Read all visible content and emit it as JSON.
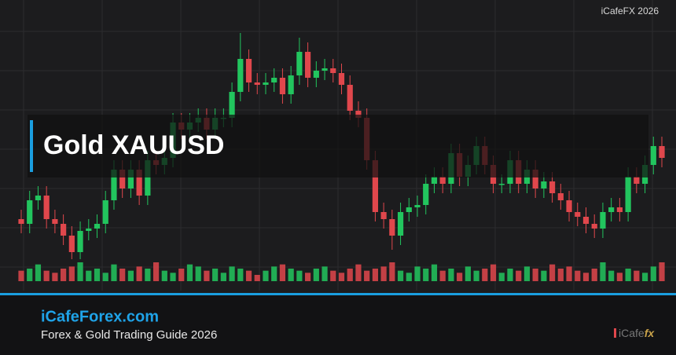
{
  "chart_data": {
    "type": "candlestick",
    "ylim": [
      0,
      100
    ],
    "up_color": "#22c55e",
    "down_color": "#e0474c",
    "open": [
      17,
      15,
      25,
      27,
      17,
      15,
      10,
      3,
      12,
      13,
      15,
      25,
      38,
      30,
      38,
      27,
      42,
      40,
      43,
      58,
      55,
      58,
      60,
      55,
      60,
      60,
      71,
      85,
      75,
      74,
      75,
      77,
      70,
      78,
      88,
      77,
      80,
      81,
      79,
      74,
      63,
      60,
      42,
      20,
      17,
      10,
      20,
      22,
      23,
      32,
      35,
      32,
      45,
      35,
      40,
      48,
      40,
      32,
      32,
      42,
      32,
      38,
      30,
      33,
      28,
      25,
      20,
      18,
      15,
      13,
      20,
      22,
      20,
      35,
      32,
      40,
      48
    ],
    "high": [
      21,
      29,
      31,
      31,
      21,
      19,
      14,
      16,
      17,
      19,
      29,
      42,
      42,
      42,
      42,
      46,
      46,
      47,
      62,
      62,
      62,
      64,
      64,
      64,
      64,
      75,
      96,
      89,
      79,
      79,
      81,
      81,
      82,
      94,
      92,
      84,
      85,
      85,
      83,
      78,
      67,
      64,
      46,
      24,
      21,
      24,
      26,
      27,
      36,
      39,
      39,
      49,
      49,
      44,
      52,
      52,
      44,
      36,
      46,
      46,
      42,
      42,
      37,
      37,
      32,
      29,
      24,
      22,
      19,
      24,
      26,
      26,
      39,
      39,
      44,
      52,
      52
    ],
    "low": [
      11,
      11,
      21,
      13,
      11,
      6,
      0,
      0,
      8,
      9,
      11,
      21,
      26,
      26,
      23,
      23,
      36,
      36,
      39,
      51,
      51,
      54,
      51,
      51,
      56,
      56,
      67,
      71,
      70,
      70,
      71,
      66,
      66,
      74,
      73,
      73,
      76,
      75,
      70,
      59,
      56,
      38,
      16,
      13,
      4,
      6,
      16,
      18,
      19,
      28,
      28,
      28,
      31,
      31,
      36,
      36,
      28,
      28,
      28,
      28,
      28,
      26,
      26,
      24,
      21,
      16,
      14,
      11,
      9,
      9,
      16,
      16,
      16,
      28,
      28,
      36,
      39
    ],
    "close": [
      15,
      25,
      27,
      17,
      15,
      10,
      3,
      12,
      13,
      15,
      25,
      38,
      30,
      38,
      27,
      42,
      40,
      43,
      58,
      55,
      58,
      60,
      55,
      60,
      60,
      71,
      85,
      75,
      74,
      75,
      77,
      70,
      78,
      88,
      77,
      80,
      81,
      79,
      74,
      63,
      60,
      42,
      20,
      17,
      10,
      20,
      22,
      23,
      32,
      35,
      32,
      45,
      35,
      40,
      48,
      40,
      32,
      32,
      42,
      32,
      38,
      30,
      33,
      28,
      25,
      20,
      18,
      15,
      13,
      20,
      22,
      20,
      35,
      32,
      40,
      48,
      43
    ],
    "volume": [
      5,
      6,
      8,
      5,
      4,
      6,
      7,
      9,
      5,
      6,
      4,
      8,
      6,
      5,
      7,
      6,
      9,
      5,
      4,
      6,
      8,
      7,
      5,
      6,
      4,
      7,
      6,
      5,
      3,
      5,
      7,
      8,
      6,
      5,
      4,
      6,
      7,
      5,
      4,
      6,
      8,
      5,
      6,
      7,
      9,
      5,
      4,
      7,
      6,
      8,
      5,
      6,
      4,
      7,
      5,
      6,
      8,
      4,
      6,
      5,
      7,
      6,
      5,
      8,
      6,
      7,
      5,
      4,
      6,
      9,
      5,
      4,
      6,
      5,
      4,
      7,
      9
    ]
  },
  "watermark": "iCafeFX 2026",
  "title": "Gold XAUUSD",
  "footer": {
    "site": "iCafeForex.com",
    "subtitle": "Forex & Gold Trading Guide 2026"
  },
  "logo": {
    "prefix": "iCafe",
    "suffix": "fx"
  }
}
